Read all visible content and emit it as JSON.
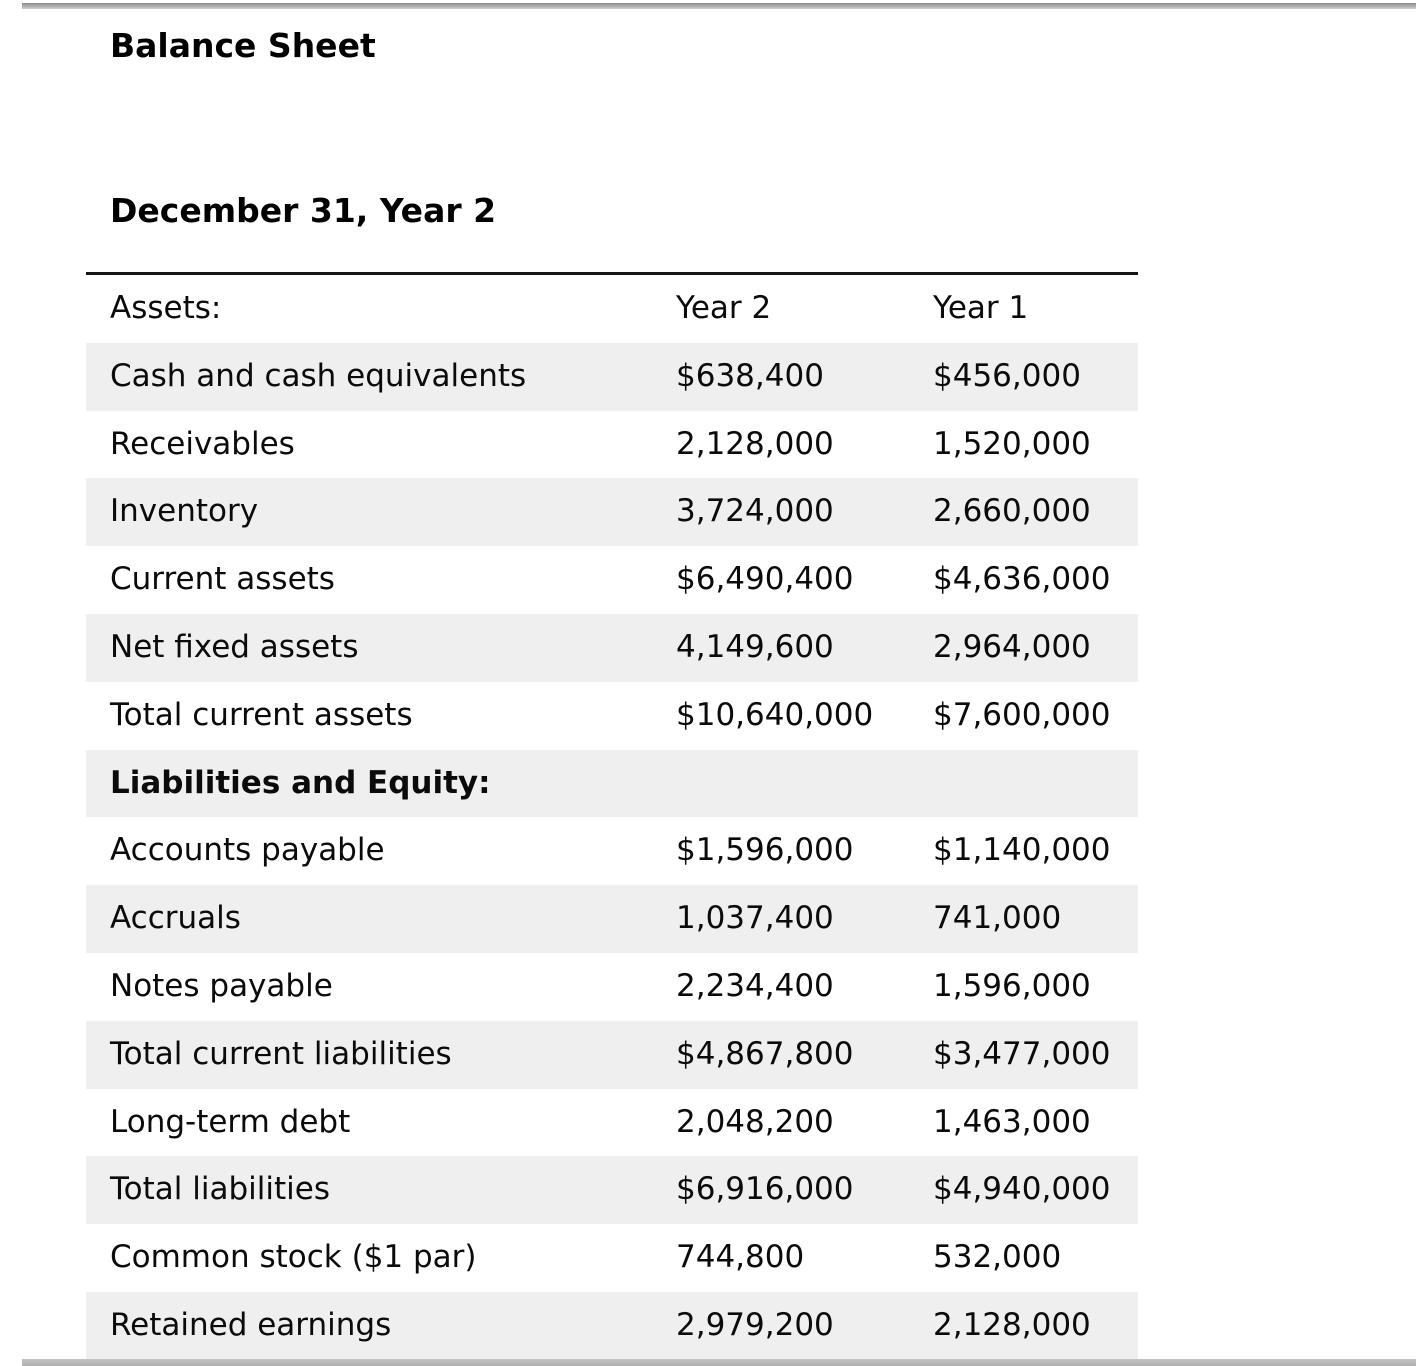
{
  "page": {
    "title": "Balance Sheet",
    "date_heading": "December 31, Year 2"
  },
  "table": {
    "header": {
      "col1": "Assets:",
      "col2": "Year 2",
      "col3": "Year 1"
    },
    "rows": [
      {
        "label": "Cash and cash equivalents",
        "year2": "$638,400",
        "year1": "$456,000",
        "section": false
      },
      {
        "label": "Receivables",
        "year2": "2,128,000",
        "year1": "1,520,000",
        "section": false
      },
      {
        "label": "Inventory",
        "year2": "3,724,000",
        "year1": "2,660,000",
        "section": false
      },
      {
        "label": "Current assets",
        "year2": "$6,490,400",
        "year1": "$4,636,000",
        "section": false
      },
      {
        "label": "Net fixed assets",
        "year2": "4,149,600",
        "year1": "2,964,000",
        "section": false
      },
      {
        "label": "Total current assets",
        "year2": "$10,640,000",
        "year1": "$7,600,000",
        "section": false
      },
      {
        "label": "Liabilities and Equity:",
        "year2": "",
        "year1": "",
        "section": true
      },
      {
        "label": "Accounts payable",
        "year2": "$1,596,000",
        "year1": "$1,140,000",
        "section": false
      },
      {
        "label": "Accruals",
        "year2": "1,037,400",
        "year1": "741,000",
        "section": false
      },
      {
        "label": "Notes payable",
        "year2": "2,234,400",
        "year1": "1,596,000",
        "section": false
      },
      {
        "label": "Total current liabilities",
        "year2": "$4,867,800",
        "year1": "$3,477,000",
        "section": false
      },
      {
        "label": "Long-term debt",
        "year2": "2,048,200",
        "year1": "1,463,000",
        "section": false
      },
      {
        "label": "Total liabilities",
        "year2": "$6,916,000",
        "year1": "$4,940,000",
        "section": false
      },
      {
        "label": "Common stock ($1 par)",
        "year2": "744,800",
        "year1": "532,000",
        "section": false
      },
      {
        "label": "Retained earnings",
        "year2": "2,979,200",
        "year1": "2,128,000",
        "section": false
      }
    ]
  },
  "colors": {
    "row_shade": "#efefef",
    "rule": "#161616",
    "top_bar": "#a9a9a9",
    "bottom_bar": "#b3b3b3",
    "text": "#0b0b0b"
  }
}
